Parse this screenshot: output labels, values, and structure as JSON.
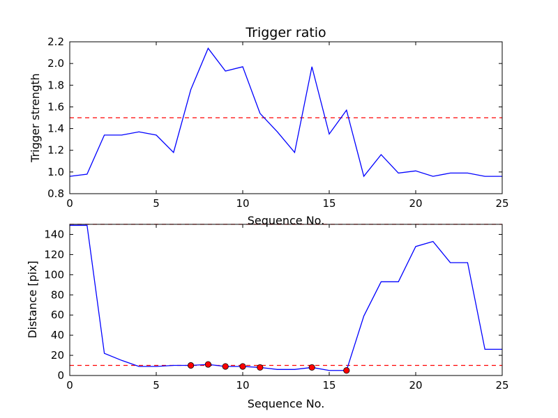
{
  "chart_data": [
    {
      "type": "line",
      "title": "Trigger ratio",
      "xlabel": "Sequence No.",
      "ylabel": "Trigger strength",
      "xlim": [
        0,
        25
      ],
      "ylim": [
        0.8,
        2.2
      ],
      "xticks": [
        0,
        5,
        10,
        15,
        20,
        25
      ],
      "xtick_labels": [
        "0",
        "5",
        "10",
        "15",
        "20",
        "25"
      ],
      "yticks": [
        0.8,
        1.0,
        1.2,
        1.4,
        1.6,
        1.8,
        2.0,
        2.2
      ],
      "ytick_labels": [
        "0.8",
        "1.0",
        "1.2",
        "1.4",
        "1.6",
        "1.8",
        "2.0",
        "2.2"
      ],
      "grid": false,
      "line_color": "#0000ff",
      "threshold_color": "#ff0000",
      "series": [
        {
          "x": [
            0,
            1,
            2,
            3,
            4,
            5,
            6,
            7,
            8,
            9,
            10,
            11,
            12,
            13,
            14,
            15,
            16,
            17,
            18,
            19,
            20,
            21,
            22,
            23,
            24,
            25
          ],
          "values": [
            0.96,
            0.98,
            1.34,
            1.34,
            1.37,
            1.34,
            1.18,
            1.76,
            2.14,
            1.93,
            1.97,
            1.54,
            1.37,
            1.18,
            1.97,
            1.35,
            1.57,
            0.96,
            1.16,
            0.99,
            1.01,
            0.96,
            0.99,
            0.99,
            0.96,
            0.96
          ]
        }
      ],
      "thresholds": [
        1.5
      ]
    },
    {
      "type": "line",
      "title": "",
      "xlabel": "Sequence No.",
      "ylabel": "Distance [pix]",
      "xlim": [
        0,
        25
      ],
      "ylim": [
        0,
        150
      ],
      "xticks": [
        0,
        5,
        10,
        15,
        20,
        25
      ],
      "xtick_labels": [
        "0",
        "5",
        "10",
        "15",
        "20",
        "25"
      ],
      "yticks": [
        0,
        20,
        40,
        60,
        80,
        100,
        120,
        140
      ],
      "ytick_labels": [
        "0",
        "20",
        "40",
        "60",
        "80",
        "100",
        "120",
        "140"
      ],
      "grid": false,
      "line_color": "#0000ff",
      "threshold_color": "#ff0000",
      "marker_color": "#ff0000",
      "series": [
        {
          "x": [
            0,
            1,
            2,
            3,
            4,
            5,
            6,
            7,
            8,
            9,
            10,
            11,
            12,
            13,
            14,
            15,
            16,
            17,
            18,
            19,
            20,
            21,
            22,
            23,
            24,
            25
          ],
          "values": [
            149,
            149,
            22,
            15,
            9,
            9,
            10,
            10,
            11,
            9,
            9,
            8,
            6,
            6,
            8,
            5,
            5,
            59,
            93,
            93,
            128,
            133,
            112,
            112,
            26,
            26
          ]
        }
      ],
      "markers": {
        "x": [
          7,
          8,
          9,
          10,
          11,
          14,
          16
        ],
        "values": [
          10,
          11,
          9,
          9,
          8,
          8,
          5
        ]
      },
      "thresholds": [
        150,
        10
      ]
    }
  ]
}
